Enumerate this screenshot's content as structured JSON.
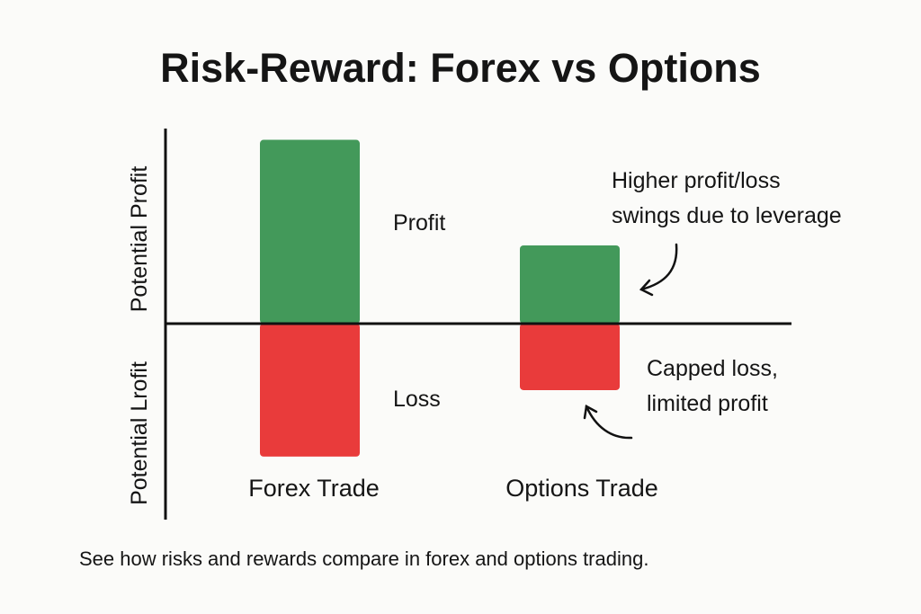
{
  "chart_data": {
    "type": "bar",
    "title": "Risk-Reward: Forex vs Options",
    "ylabel_top": "Potential Profit",
    "ylabel_bottom": "Potential Lrofit",
    "categories": [
      "Forex Trade",
      "Options Trade"
    ],
    "series": [
      {
        "name": "Profit",
        "values": [
          9.4,
          4.0
        ],
        "color": "#43995a"
      },
      {
        "name": "Loss",
        "values": [
          -6.8,
          -3.4
        ],
        "color": "#e93b3b"
      }
    ],
    "ylim": [
      -10,
      10
    ],
    "grid": false,
    "bar_labels": {
      "profit": "Profit",
      "loss": "Loss"
    },
    "annotations": [
      {
        "lines": [
          "Higher profit/loss",
          "swings due to leverage"
        ]
      },
      {
        "lines": [
          "Capped loss,",
          "limited profit"
        ]
      }
    ],
    "caption": "See how risks and rewards compare in forex and options trading."
  }
}
